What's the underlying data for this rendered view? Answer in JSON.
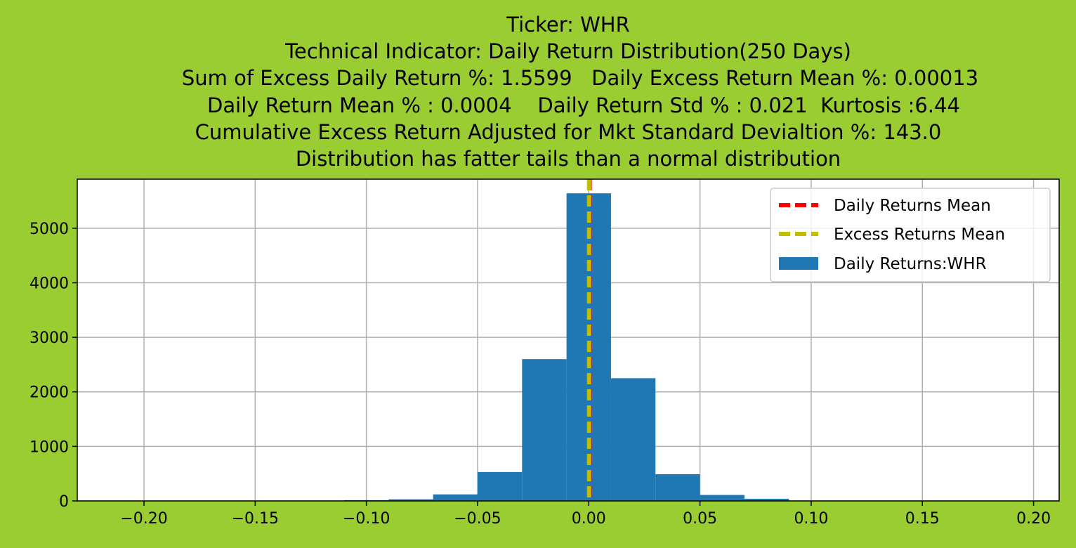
{
  "colors": {
    "background": "#9acd32",
    "plot_background": "#ffffff",
    "bars": "#1f77b4",
    "daily_mean_line": "#ff0000",
    "excess_mean_line": "#bfbf00",
    "grid": "#b0b0b0"
  },
  "chart_data": {
    "type": "bar",
    "title_lines": [
      "Ticker: WHR",
      "Technical Indicator: Daily Return Distribution(250 Days)",
      "Sum of Excess Daily Return %: 1.5599   Daily Excess Return Mean %: 0.00013",
      "Daily Return Mean % : 0.0004    Daily Return Std % : 0.021  Kurtosis :6.44",
      "Cumulative Excess Return Adjusted for Mkt Standard Devialtion %: 143.0",
      "Distribution has fatter tails than a normal distribution"
    ],
    "xlim": [
      -0.23,
      0.2115
    ],
    "ylim": [
      0,
      5900
    ],
    "x_ticks": [
      -0.2,
      -0.15,
      -0.1,
      -0.05,
      0.0,
      0.05,
      0.1,
      0.15,
      0.2
    ],
    "x_tick_labels": [
      "−0.20",
      "−0.15",
      "−0.10",
      "−0.05",
      "0.00",
      "0.05",
      "0.10",
      "0.15",
      "0.20"
    ],
    "y_ticks": [
      0,
      1000,
      2000,
      3000,
      4000,
      5000
    ],
    "y_tick_labels": [
      "0",
      "1000",
      "2000",
      "3000",
      "4000",
      "5000"
    ],
    "grid": true,
    "legend_position": "top-right",
    "bins": [
      {
        "x0": -0.21,
        "x1": -0.19,
        "value": 0
      },
      {
        "x0": -0.19,
        "x1": -0.17,
        "value": 0
      },
      {
        "x0": -0.17,
        "x1": -0.15,
        "value": 0
      },
      {
        "x0": -0.15,
        "x1": -0.13,
        "value": 0
      },
      {
        "x0": -0.13,
        "x1": -0.11,
        "value": 5
      },
      {
        "x0": -0.11,
        "x1": -0.09,
        "value": 15
      },
      {
        "x0": -0.09,
        "x1": -0.07,
        "value": 30
      },
      {
        "x0": -0.07,
        "x1": -0.05,
        "value": 120
      },
      {
        "x0": -0.05,
        "x1": -0.03,
        "value": 530
      },
      {
        "x0": -0.03,
        "x1": -0.01,
        "value": 2600
      },
      {
        "x0": -0.01,
        "x1": 0.01,
        "value": 5640
      },
      {
        "x0": 0.01,
        "x1": 0.03,
        "value": 2250
      },
      {
        "x0": 0.03,
        "x1": 0.05,
        "value": 490
      },
      {
        "x0": 0.05,
        "x1": 0.07,
        "value": 110
      },
      {
        "x0": 0.07,
        "x1": 0.09,
        "value": 40
      },
      {
        "x0": 0.09,
        "x1": 0.11,
        "value": 5
      },
      {
        "x0": 0.11,
        "x1": 0.13,
        "value": 0
      },
      {
        "x0": 0.13,
        "x1": 0.15,
        "value": 0
      },
      {
        "x0": 0.15,
        "x1": 0.17,
        "value": 0
      },
      {
        "x0": 0.17,
        "x1": 0.19,
        "value": 0
      }
    ],
    "vlines": [
      {
        "name": "Daily Returns Mean",
        "x": 0.0004,
        "style": "dashed"
      },
      {
        "name": "Excess Returns Mean",
        "x": 0.00013,
        "style": "dashed"
      }
    ],
    "legend": [
      "Daily Returns Mean",
      "Excess Returns Mean",
      "Daily Returns:WHR"
    ]
  }
}
